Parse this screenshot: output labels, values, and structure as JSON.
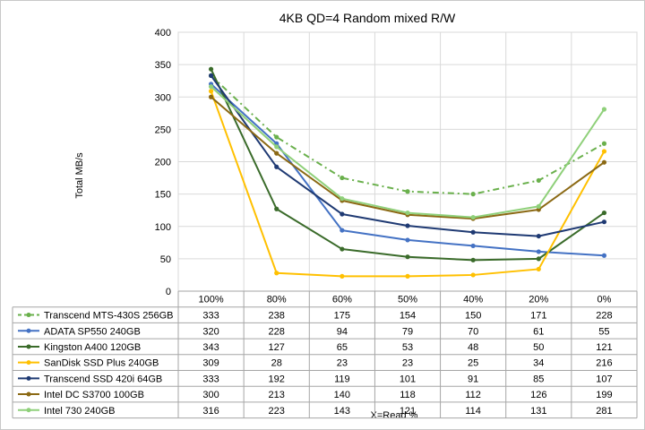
{
  "chart_data": {
    "type": "line",
    "title": "4KB QD=4 Random mixed R/W",
    "xlabel": "X=Read %",
    "ylabel": "Total MB/s",
    "categories": [
      "100%",
      "80%",
      "60%",
      "50%",
      "40%",
      "20%",
      "0%"
    ],
    "ylim": [
      0,
      400
    ],
    "yticks": [
      0,
      50,
      100,
      150,
      200,
      250,
      300,
      350,
      400
    ],
    "grid": true,
    "legend": "data-table-left",
    "series": [
      {
        "name": "Transcend MTS-430S 256GB",
        "values": [
          333,
          238,
          175,
          154,
          150,
          171,
          228
        ],
        "color": "#6ab04c",
        "dash": "dashdot"
      },
      {
        "name": "ADATA SP550 240GB",
        "values": [
          320,
          228,
          94,
          79,
          70,
          61,
          55
        ],
        "color": "#4472c4",
        "dash": "solid"
      },
      {
        "name": "Kingston A400 120GB",
        "values": [
          343,
          127,
          65,
          53,
          48,
          50,
          121
        ],
        "color": "#3a6b2a",
        "dash": "solid"
      },
      {
        "name": "SanDisk SSD Plus 240GB",
        "values": [
          309,
          28,
          23,
          23,
          25,
          34,
          216
        ],
        "color": "#ffc000",
        "dash": "solid"
      },
      {
        "name": "Transcend SSD 420i 64GB",
        "values": [
          333,
          192,
          119,
          101,
          91,
          85,
          107
        ],
        "color": "#1f3a73",
        "dash": "solid"
      },
      {
        "name": "Intel DC S3700 100GB",
        "values": [
          300,
          213,
          140,
          118,
          112,
          126,
          199
        ],
        "color": "#8b6914",
        "dash": "solid"
      },
      {
        "name": "Intel 730 240GB",
        "values": [
          316,
          223,
          143,
          121,
          114,
          131,
          281
        ],
        "color": "#8fd07a",
        "dash": "solid"
      }
    ]
  }
}
